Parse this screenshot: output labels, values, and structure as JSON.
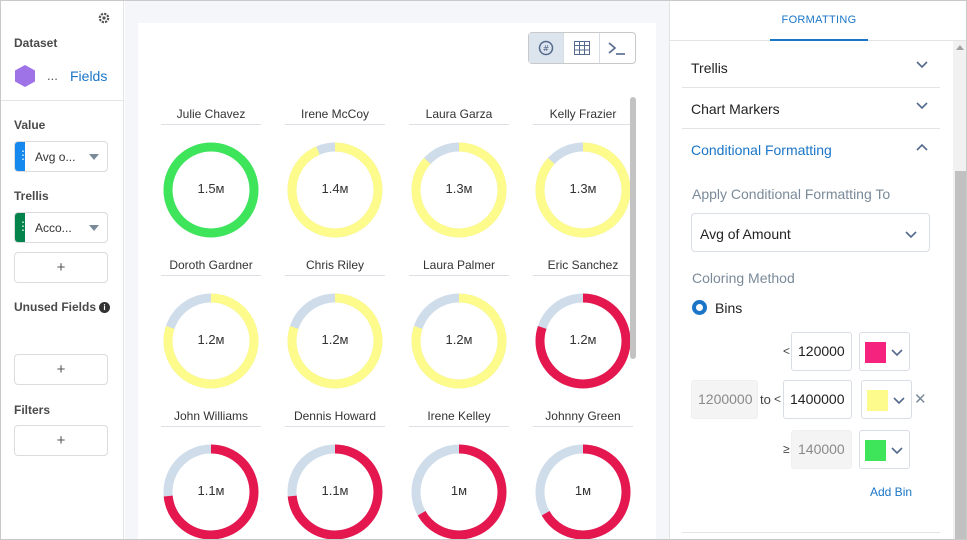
{
  "left_panel": {
    "dataset_label": "Dataset",
    "dataset_ellipsis": "...",
    "fields_link": "Fields",
    "value_label": "Value",
    "value_pill": "Avg o...",
    "trellis_label": "Trellis",
    "trellis_pill": "Acco...",
    "add_symbol": "+",
    "unused_fields_label": "Unused Fields",
    "info_symbol": "i",
    "filters_label": "Filters",
    "colors": {
      "value_bar": "#1589ee",
      "trellis_bar": "#04844b",
      "dataset_icon": "#9e73e8"
    }
  },
  "toolbar": {
    "icons": [
      "chart-icon",
      "table-icon",
      "console-icon"
    ]
  },
  "chart_data": {
    "type": "donut-trellis",
    "max": 1500000,
    "cells": [
      {
        "name": "Julie Chavez",
        "label": "1.5м",
        "value": 1500000,
        "color": "#3ee55b"
      },
      {
        "name": "Irene McCoy",
        "label": "1.4м",
        "value": 1400000,
        "color": "#fdfb8b"
      },
      {
        "name": "Laura Garza",
        "label": "1.3м",
        "value": 1300000,
        "color": "#fdfb8b"
      },
      {
        "name": "Kelly Frazier",
        "label": "1.3м",
        "value": 1300000,
        "color": "#fdfb8b"
      },
      {
        "name": "Doroth Gardner",
        "label": "1.2м",
        "value": 1200000,
        "color": "#fdfb8b"
      },
      {
        "name": "Chris Riley",
        "label": "1.2м",
        "value": 1200000,
        "color": "#fdfb8b"
      },
      {
        "name": "Laura Palmer",
        "label": "1.2м",
        "value": 1200000,
        "color": "#fdfb8b"
      },
      {
        "name": "Eric Sanchez",
        "label": "1.2м",
        "value": 1200000,
        "color": "#e5174f"
      },
      {
        "name": "John Williams",
        "label": "1.1м",
        "value": 1100000,
        "color": "#e5174f"
      },
      {
        "name": "Dennis Howard",
        "label": "1.1м",
        "value": 1100000,
        "color": "#e5174f"
      },
      {
        "name": "Irene Kelley",
        "label": "1м",
        "value": 1000000,
        "color": "#e5174f"
      },
      {
        "name": "Johnny Green",
        "label": "1м",
        "value": 1000000,
        "color": "#e5174f"
      }
    ],
    "track_color": "#cfdcea"
  },
  "right_panel": {
    "tab_label": "FORMATTING",
    "sections": [
      "Trellis",
      "Chart Markers",
      "Conditional Formatting"
    ],
    "apply_label": "Apply Conditional Formatting To",
    "apply_value": "Avg of Amount",
    "coloring_method_label": "Coloring Method",
    "bins_label": "Bins",
    "bins": [
      {
        "op": "<",
        "value": "120000",
        "color": "#f5227e"
      },
      {
        "from": "1200000",
        "to_label": "to",
        "op": "<",
        "value": "1400000",
        "color": "#fdfb8b"
      },
      {
        "op": "≥",
        "value": "140000",
        "color": "#3ee55b"
      }
    ],
    "remove_symbol": "✕",
    "add_bin_label": "Add Bin"
  }
}
